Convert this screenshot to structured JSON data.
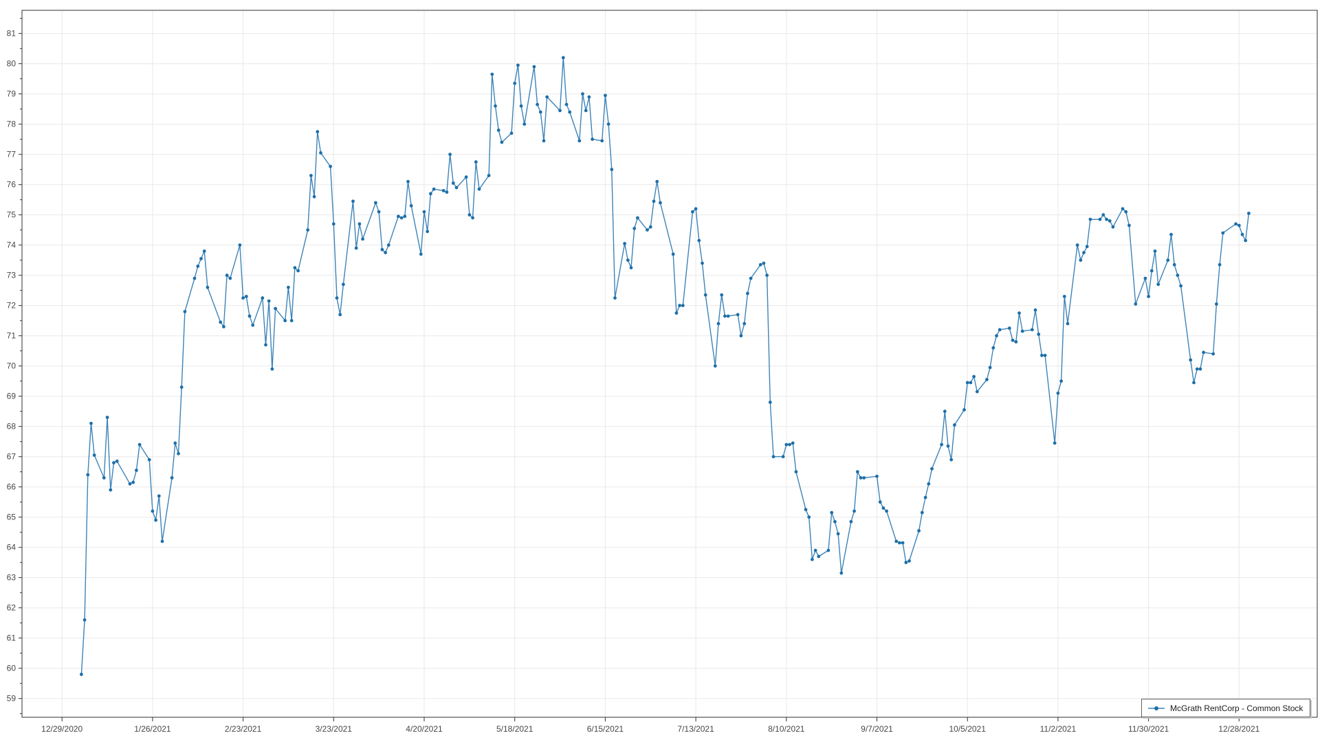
{
  "window": {
    "background": "#ffffff"
  },
  "chart": {
    "colors": {
      "line": "#3c83b8",
      "marker": "#1e6fa8",
      "grid": "#e8e8e8",
      "plot_border": "#2f2f2f",
      "tick": "#2f2f2f",
      "axis_label": "#464646"
    },
    "y_axis": {
      "ticks": [
        59,
        60,
        61,
        62,
        63,
        64,
        65,
        66,
        67,
        68,
        69,
        70,
        71,
        72,
        73,
        74,
        75,
        76,
        77,
        78,
        79,
        80,
        81
      ]
    },
    "x_axis": {
      "ticks": [
        {
          "label": "12/29/2020",
          "date": "2020-12-29"
        },
        {
          "label": "1/26/2021",
          "date": "2021-01-26"
        },
        {
          "label": "2/23/2021",
          "date": "2021-02-23"
        },
        {
          "label": "3/23/2021",
          "date": "2021-03-23"
        },
        {
          "label": "4/20/2021",
          "date": "2021-04-20"
        },
        {
          "label": "5/18/2021",
          "date": "2021-05-18"
        },
        {
          "label": "6/15/2021",
          "date": "2021-06-15"
        },
        {
          "label": "7/13/2021",
          "date": "2021-07-13"
        },
        {
          "label": "8/10/2021",
          "date": "2021-08-10"
        },
        {
          "label": "9/7/2021",
          "date": "2021-09-07"
        },
        {
          "label": "10/5/2021",
          "date": "2021-10-05"
        },
        {
          "label": "11/2/2021",
          "date": "2021-11-02"
        },
        {
          "label": "11/30/2021",
          "date": "2021-11-30"
        },
        {
          "label": "12/28/2021",
          "date": "2021-12-28"
        }
      ]
    },
    "legend": {
      "label": "McGrath RentCorp - Common Stock"
    }
  },
  "chart_data": {
    "type": "line",
    "title": "",
    "xlabel": "",
    "ylabel": "",
    "ylim": [
      58.55,
      81.75
    ],
    "x_start": "2020-12-29",
    "x_tick_interval_days": 28,
    "grid": true,
    "legend_position": "bottom-right",
    "markers": true,
    "series": [
      {
        "name": "McGrath RentCorp - Common Stock",
        "points": [
          [
            "2021-01-04",
            59.8
          ],
          [
            "2021-01-05",
            61.6
          ],
          [
            "2021-01-06",
            66.4
          ],
          [
            "2021-01-07",
            68.1
          ],
          [
            "2021-01-08",
            67.05
          ],
          [
            "2021-01-11",
            66.3
          ],
          [
            "2021-01-12",
            68.3
          ],
          [
            "2021-01-13",
            65.9
          ],
          [
            "2021-01-14",
            66.8
          ],
          [
            "2021-01-15",
            66.85
          ],
          [
            "2021-01-19",
            66.1
          ],
          [
            "2021-01-20",
            66.15
          ],
          [
            "2021-01-21",
            66.55
          ],
          [
            "2021-01-22",
            67.4
          ],
          [
            "2021-01-25",
            66.9
          ],
          [
            "2021-01-26",
            65.2
          ],
          [
            "2021-01-27",
            64.9
          ],
          [
            "2021-01-28",
            65.7
          ],
          [
            "2021-01-29",
            64.2
          ],
          [
            "2021-02-01",
            66.3
          ],
          [
            "2021-02-02",
            67.45
          ],
          [
            "2021-02-03",
            67.1
          ],
          [
            "2021-02-04",
            69.3
          ],
          [
            "2021-02-05",
            71.8
          ],
          [
            "2021-02-08",
            72.9
          ],
          [
            "2021-02-09",
            73.3
          ],
          [
            "2021-02-10",
            73.55
          ],
          [
            "2021-02-11",
            73.8
          ],
          [
            "2021-02-12",
            72.6
          ],
          [
            "2021-02-16",
            71.45
          ],
          [
            "2021-02-17",
            71.3
          ],
          [
            "2021-02-18",
            73.0
          ],
          [
            "2021-02-19",
            72.9
          ],
          [
            "2021-02-22",
            74.0
          ],
          [
            "2021-02-23",
            72.25
          ],
          [
            "2021-02-24",
            72.3
          ],
          [
            "2021-02-25",
            71.65
          ],
          [
            "2021-02-26",
            71.35
          ],
          [
            "2021-03-01",
            72.25
          ],
          [
            "2021-03-02",
            70.7
          ],
          [
            "2021-03-03",
            72.15
          ],
          [
            "2021-03-04",
            69.9
          ],
          [
            "2021-03-05",
            71.9
          ],
          [
            "2021-03-08",
            71.5
          ],
          [
            "2021-03-09",
            72.6
          ],
          [
            "2021-03-10",
            71.5
          ],
          [
            "2021-03-11",
            73.25
          ],
          [
            "2021-03-12",
            73.15
          ],
          [
            "2021-03-15",
            74.5
          ],
          [
            "2021-03-16",
            76.3
          ],
          [
            "2021-03-17",
            75.6
          ],
          [
            "2021-03-18",
            77.75
          ],
          [
            "2021-03-19",
            77.05
          ],
          [
            "2021-03-22",
            76.6
          ],
          [
            "2021-03-23",
            74.7
          ],
          [
            "2021-03-24",
            72.25
          ],
          [
            "2021-03-25",
            71.7
          ],
          [
            "2021-03-26",
            72.7
          ],
          [
            "2021-03-29",
            75.45
          ],
          [
            "2021-03-30",
            73.9
          ],
          [
            "2021-03-31",
            74.7
          ],
          [
            "2021-04-01",
            74.2
          ],
          [
            "2021-04-05",
            75.4
          ],
          [
            "2021-04-06",
            75.1
          ],
          [
            "2021-04-07",
            73.85
          ],
          [
            "2021-04-08",
            73.75
          ],
          [
            "2021-04-09",
            74.0
          ],
          [
            "2021-04-12",
            74.95
          ],
          [
            "2021-04-13",
            74.9
          ],
          [
            "2021-04-14",
            74.95
          ],
          [
            "2021-04-15",
            76.1
          ],
          [
            "2021-04-16",
            75.3
          ],
          [
            "2021-04-19",
            73.7
          ],
          [
            "2021-04-20",
            75.1
          ],
          [
            "2021-04-21",
            74.45
          ],
          [
            "2021-04-22",
            75.7
          ],
          [
            "2021-04-23",
            75.85
          ],
          [
            "2021-04-26",
            75.8
          ],
          [
            "2021-04-27",
            75.75
          ],
          [
            "2021-04-28",
            77.0
          ],
          [
            "2021-04-29",
            76.05
          ],
          [
            "2021-04-30",
            75.9
          ],
          [
            "2021-05-03",
            76.25
          ],
          [
            "2021-05-04",
            75.0
          ],
          [
            "2021-05-05",
            74.9
          ],
          [
            "2021-05-06",
            76.75
          ],
          [
            "2021-05-07",
            75.85
          ],
          [
            "2021-05-10",
            76.3
          ],
          [
            "2021-05-11",
            79.65
          ],
          [
            "2021-05-12",
            78.6
          ],
          [
            "2021-05-13",
            77.8
          ],
          [
            "2021-05-14",
            77.4
          ],
          [
            "2021-05-17",
            77.7
          ],
          [
            "2021-05-18",
            79.35
          ],
          [
            "2021-05-19",
            79.95
          ],
          [
            "2021-05-20",
            78.6
          ],
          [
            "2021-05-21",
            78.0
          ],
          [
            "2021-05-24",
            79.9
          ],
          [
            "2021-05-25",
            78.65
          ],
          [
            "2021-05-26",
            78.4
          ],
          [
            "2021-05-27",
            77.45
          ],
          [
            "2021-05-28",
            78.9
          ],
          [
            "2021-06-01",
            78.45
          ],
          [
            "2021-06-02",
            80.2
          ],
          [
            "2021-06-03",
            78.65
          ],
          [
            "2021-06-04",
            78.4
          ],
          [
            "2021-06-07",
            77.45
          ],
          [
            "2021-06-08",
            79.0
          ],
          [
            "2021-06-09",
            78.45
          ],
          [
            "2021-06-10",
            78.9
          ],
          [
            "2021-06-11",
            77.5
          ],
          [
            "2021-06-14",
            77.45
          ],
          [
            "2021-06-15",
            78.95
          ],
          [
            "2021-06-16",
            78.0
          ],
          [
            "2021-06-17",
            76.5
          ],
          [
            "2021-06-18",
            72.25
          ],
          [
            "2021-06-21",
            74.05
          ],
          [
            "2021-06-22",
            73.5
          ],
          [
            "2021-06-23",
            73.25
          ],
          [
            "2021-06-24",
            74.55
          ],
          [
            "2021-06-25",
            74.9
          ],
          [
            "2021-06-28",
            74.5
          ],
          [
            "2021-06-29",
            74.6
          ],
          [
            "2021-06-30",
            75.45
          ],
          [
            "2021-07-01",
            76.1
          ],
          [
            "2021-07-02",
            75.4
          ],
          [
            "2021-07-06",
            73.7
          ],
          [
            "2021-07-07",
            71.75
          ],
          [
            "2021-07-08",
            72.0
          ],
          [
            "2021-07-09",
            72.0
          ],
          [
            "2021-07-12",
            75.1
          ],
          [
            "2021-07-13",
            75.2
          ],
          [
            "2021-07-14",
            74.15
          ],
          [
            "2021-07-15",
            73.4
          ],
          [
            "2021-07-16",
            72.35
          ],
          [
            "2021-07-19",
            70.0
          ],
          [
            "2021-07-20",
            71.4
          ],
          [
            "2021-07-21",
            72.35
          ],
          [
            "2021-07-22",
            71.65
          ],
          [
            "2021-07-23",
            71.65
          ],
          [
            "2021-07-26",
            71.7
          ],
          [
            "2021-07-27",
            71.0
          ],
          [
            "2021-07-28",
            71.4
          ],
          [
            "2021-07-29",
            72.4
          ],
          [
            "2021-07-30",
            72.9
          ],
          [
            "2021-08-02",
            73.35
          ],
          [
            "2021-08-03",
            73.4
          ],
          [
            "2021-08-04",
            73.0
          ],
          [
            "2021-08-05",
            68.8
          ],
          [
            "2021-08-06",
            67.0
          ],
          [
            "2021-08-09",
            67.0
          ],
          [
            "2021-08-10",
            67.4
          ],
          [
            "2021-08-11",
            67.4
          ],
          [
            "2021-08-12",
            67.45
          ],
          [
            "2021-08-13",
            66.5
          ],
          [
            "2021-08-16",
            65.25
          ],
          [
            "2021-08-17",
            65.0
          ],
          [
            "2021-08-18",
            63.6
          ],
          [
            "2021-08-19",
            63.9
          ],
          [
            "2021-08-20",
            63.7
          ],
          [
            "2021-08-23",
            63.9
          ],
          [
            "2021-08-24",
            65.15
          ],
          [
            "2021-08-25",
            64.85
          ],
          [
            "2021-08-26",
            64.45
          ],
          [
            "2021-08-27",
            63.15
          ],
          [
            "2021-08-30",
            64.85
          ],
          [
            "2021-08-31",
            65.2
          ],
          [
            "2021-09-01",
            66.5
          ],
          [
            "2021-09-02",
            66.3
          ],
          [
            "2021-09-03",
            66.3
          ],
          [
            "2021-09-07",
            66.35
          ],
          [
            "2021-09-08",
            65.5
          ],
          [
            "2021-09-09",
            65.3
          ],
          [
            "2021-09-10",
            65.2
          ],
          [
            "2021-09-13",
            64.2
          ],
          [
            "2021-09-14",
            64.15
          ],
          [
            "2021-09-15",
            64.15
          ],
          [
            "2021-09-16",
            63.5
          ],
          [
            "2021-09-17",
            63.55
          ],
          [
            "2021-09-20",
            64.55
          ],
          [
            "2021-09-21",
            65.15
          ],
          [
            "2021-09-22",
            65.65
          ],
          [
            "2021-09-23",
            66.1
          ],
          [
            "2021-09-24",
            66.6
          ],
          [
            "2021-09-27",
            67.4
          ],
          [
            "2021-09-28",
            68.5
          ],
          [
            "2021-09-29",
            67.35
          ],
          [
            "2021-09-30",
            66.9
          ],
          [
            "2021-10-01",
            68.05
          ],
          [
            "2021-10-04",
            68.55
          ],
          [
            "2021-10-05",
            69.45
          ],
          [
            "2021-10-06",
            69.45
          ],
          [
            "2021-10-07",
            69.65
          ],
          [
            "2021-10-08",
            69.15
          ],
          [
            "2021-10-11",
            69.55
          ],
          [
            "2021-10-12",
            69.95
          ],
          [
            "2021-10-13",
            70.6
          ],
          [
            "2021-10-14",
            71.0
          ],
          [
            "2021-10-15",
            71.2
          ],
          [
            "2021-10-18",
            71.25
          ],
          [
            "2021-10-19",
            70.85
          ],
          [
            "2021-10-20",
            70.8
          ],
          [
            "2021-10-21",
            71.75
          ],
          [
            "2021-10-22",
            71.15
          ],
          [
            "2021-10-25",
            71.2
          ],
          [
            "2021-10-26",
            71.85
          ],
          [
            "2021-10-27",
            71.05
          ],
          [
            "2021-10-28",
            70.35
          ],
          [
            "2021-10-29",
            70.35
          ],
          [
            "2021-11-01",
            67.45
          ],
          [
            "2021-11-02",
            69.1
          ],
          [
            "2021-11-03",
            69.5
          ],
          [
            "2021-11-04",
            72.3
          ],
          [
            "2021-11-05",
            71.4
          ],
          [
            "2021-11-08",
            74.0
          ],
          [
            "2021-11-09",
            73.5
          ],
          [
            "2021-11-10",
            73.75
          ],
          [
            "2021-11-11",
            73.95
          ],
          [
            "2021-11-12",
            74.85
          ],
          [
            "2021-11-15",
            74.85
          ],
          [
            "2021-11-16",
            75.0
          ],
          [
            "2021-11-17",
            74.85
          ],
          [
            "2021-11-18",
            74.8
          ],
          [
            "2021-11-19",
            74.6
          ],
          [
            "2021-11-22",
            75.2
          ],
          [
            "2021-11-23",
            75.1
          ],
          [
            "2021-11-24",
            74.65
          ],
          [
            "2021-11-26",
            72.05
          ],
          [
            "2021-11-29",
            72.9
          ],
          [
            "2021-11-30",
            72.3
          ],
          [
            "2021-12-01",
            73.15
          ],
          [
            "2021-12-02",
            73.8
          ],
          [
            "2021-12-03",
            72.7
          ],
          [
            "2021-12-06",
            73.5
          ],
          [
            "2021-12-07",
            74.35
          ],
          [
            "2021-12-08",
            73.35
          ],
          [
            "2021-12-09",
            73.0
          ],
          [
            "2021-12-10",
            72.65
          ],
          [
            "2021-12-13",
            70.2
          ],
          [
            "2021-12-14",
            69.45
          ],
          [
            "2021-12-15",
            69.9
          ],
          [
            "2021-12-16",
            69.9
          ],
          [
            "2021-12-17",
            70.45
          ],
          [
            "2021-12-20",
            70.4
          ],
          [
            "2021-12-21",
            72.05
          ],
          [
            "2021-12-22",
            73.35
          ],
          [
            "2021-12-23",
            74.4
          ],
          [
            "2021-12-27",
            74.7
          ],
          [
            "2021-12-28",
            74.65
          ],
          [
            "2021-12-29",
            74.35
          ],
          [
            "2021-12-30",
            74.15
          ],
          [
            "2021-12-31",
            75.05
          ]
        ]
      }
    ]
  }
}
